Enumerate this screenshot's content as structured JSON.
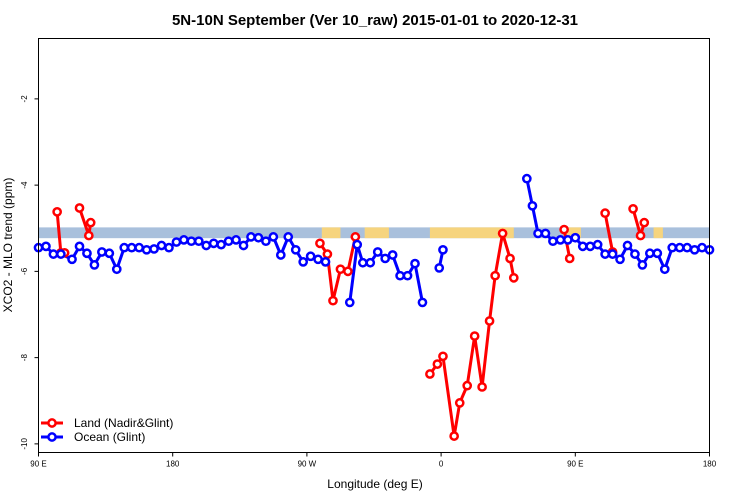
{
  "chart_data": {
    "type": "line",
    "title": "5N-10N September (Ver 10_raw)   2015-01-01 to 2020-12-31",
    "xlabel": "Longitude (deg E)",
    "ylabel": "XCO2 - MLO trend (ppm)",
    "xlim": [
      90,
      450
    ],
    "ylim": [
      -10.2,
      -0.6
    ],
    "x_ticks": [
      {
        "value": 90,
        "label": "90 E"
      },
      {
        "value": 162,
        "label": "180"
      },
      {
        "value": 234,
        "label": "90 W"
      },
      {
        "value": 306,
        "label": "0"
      },
      {
        "value": 378,
        "label": "90 E"
      },
      {
        "value": 450,
        "label": "180"
      }
    ],
    "y_ticks": [
      {
        "value": -2,
        "label": "-2"
      },
      {
        "value": -4,
        "label": "-4"
      },
      {
        "value": -6,
        "label": "-6"
      },
      {
        "value": -8,
        "label": "-8"
      },
      {
        "value": -10,
        "label": "-10"
      }
    ],
    "land_band": {
      "y_top": -4.98,
      "y_bottom": -5.23,
      "ocean_color": "#a9c0dc",
      "land_color": "#f6d47e",
      "land_ranges": [
        [
          242,
          252
        ],
        [
          265,
          278
        ],
        [
          300,
          345
        ],
        [
          372,
          381
        ],
        [
          420,
          425
        ]
      ]
    },
    "legend": {
      "position": "bottom-left"
    },
    "series": [
      {
        "name": "Land (Nadir&Glint)",
        "color": "#ff0000",
        "segments": [
          [
            [
              100,
              -4.62
            ],
            [
              102,
              -5.57
            ],
            [
              104,
              -5.57
            ]
          ],
          [
            [
              112,
              -4.53
            ],
            [
              117,
              -5.17
            ],
            [
              118,
              -4.87
            ]
          ],
          [
            [
              241,
              -5.35
            ],
            [
              245,
              -5.6
            ],
            [
              248,
              -6.68
            ],
            [
              252,
              -5.95
            ],
            [
              256,
              -6.0
            ],
            [
              260,
              -5.2
            ]
          ],
          [
            [
              300,
              -8.38
            ],
            [
              304,
              -8.15
            ],
            [
              307,
              -7.97
            ],
            [
              313,
              -9.82
            ],
            [
              316,
              -9.05
            ],
            [
              320,
              -8.65
            ],
            [
              324,
              -7.5
            ],
            [
              328,
              -8.68
            ],
            [
              332,
              -7.15
            ],
            [
              335,
              -6.1
            ],
            [
              339,
              -5.12
            ],
            [
              343,
              -5.7
            ],
            [
              345,
              -6.15
            ]
          ],
          [
            [
              372,
              -5.03
            ],
            [
              375,
              -5.7
            ]
          ],
          [
            [
              394,
              -4.65
            ],
            [
              398,
              -5.55
            ]
          ],
          [
            [
              409,
              -4.55
            ],
            [
              413,
              -5.17
            ],
            [
              415,
              -4.87
            ]
          ]
        ]
      },
      {
        "name": "Ocean (Glint)",
        "color": "#0000ff",
        "segments": [
          [
            [
              90,
              -5.45
            ],
            [
              94,
              -5.42
            ],
            [
              98,
              -5.6
            ],
            [
              102,
              -5.6
            ],
            [
              108,
              -5.72
            ],
            [
              112,
              -5.42
            ],
            [
              116,
              -5.58
            ],
            [
              120,
              -5.85
            ],
            [
              124,
              -5.55
            ],
            [
              128,
              -5.58
            ],
            [
              132,
              -5.95
            ],
            [
              136,
              -5.45
            ],
            [
              140,
              -5.45
            ],
            [
              144,
              -5.45
            ],
            [
              148,
              -5.5
            ],
            [
              152,
              -5.48
            ],
            [
              156,
              -5.4
            ],
            [
              160,
              -5.45
            ],
            [
              164,
              -5.32
            ],
            [
              168,
              -5.27
            ],
            [
              172,
              -5.3
            ],
            [
              176,
              -5.3
            ],
            [
              180,
              -5.4
            ],
            [
              184,
              -5.35
            ],
            [
              188,
              -5.38
            ],
            [
              192,
              -5.3
            ],
            [
              196,
              -5.27
            ],
            [
              200,
              -5.4
            ],
            [
              204,
              -5.2
            ],
            [
              208,
              -5.22
            ],
            [
              212,
              -5.3
            ],
            [
              216,
              -5.2
            ],
            [
              220,
              -5.62
            ],
            [
              224,
              -5.2
            ],
            [
              228,
              -5.5
            ],
            [
              232,
              -5.78
            ],
            [
              236,
              -5.65
            ],
            [
              240,
              -5.72
            ],
            [
              244,
              -5.78
            ]
          ],
          [
            [
              257,
              -6.72
            ],
            [
              261,
              -5.38
            ],
            [
              264,
              -5.8
            ],
            [
              268,
              -5.8
            ],
            [
              272,
              -5.55
            ],
            [
              276,
              -5.7
            ],
            [
              280,
              -5.62
            ],
            [
              284,
              -6.1
            ],
            [
              288,
              -6.1
            ],
            [
              292,
              -5.82
            ],
            [
              296,
              -6.72
            ]
          ],
          [
            [
              305,
              -5.92
            ],
            [
              307,
              -5.5
            ]
          ],
          [
            [
              352,
              -3.85
            ],
            [
              355,
              -4.48
            ],
            [
              358,
              -5.12
            ],
            [
              362,
              -5.12
            ],
            [
              366,
              -5.3
            ],
            [
              370,
              -5.27
            ],
            [
              374,
              -5.27
            ],
            [
              378,
              -5.22
            ],
            [
              382,
              -5.42
            ],
            [
              386,
              -5.42
            ],
            [
              390,
              -5.38
            ],
            [
              394,
              -5.6
            ],
            [
              398,
              -5.6
            ],
            [
              402,
              -5.72
            ],
            [
              406,
              -5.4
            ],
            [
              410,
              -5.6
            ],
            [
              414,
              -5.85
            ],
            [
              418,
              -5.58
            ],
            [
              422,
              -5.58
            ],
            [
              426,
              -5.95
            ],
            [
              430,
              -5.45
            ],
            [
              434,
              -5.45
            ],
            [
              438,
              -5.45
            ],
            [
              442,
              -5.5
            ],
            [
              446,
              -5.45
            ],
            [
              450,
              -5.5
            ]
          ]
        ]
      }
    ]
  }
}
